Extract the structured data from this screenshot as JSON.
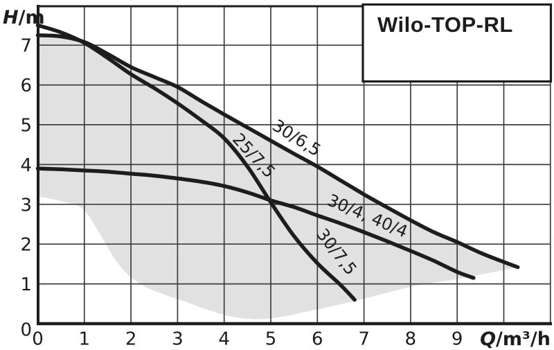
{
  "title_box": {
    "title": "Wilo-TOP-RL"
  },
  "colors": {
    "curve": "#1d1d1b",
    "grid": "#3d3d3d",
    "region_fill": "#e1e1e1",
    "background": "#ffffff",
    "border": "#1d1d1b"
  },
  "chart_data": {
    "type": "line",
    "title": "Wilo-TOP-RL",
    "xlabel": "Q/m³/h",
    "ylabel": "H/m",
    "xlabel_parts": {
      "symbol": "Q",
      "unit": "/m³/h"
    },
    "ylabel_parts": {
      "symbol": "H",
      "unit": "/m"
    },
    "xlim": [
      0,
      11
    ],
    "ylim": [
      0,
      8
    ],
    "grid": true,
    "legend_position": "none",
    "x_ticks": [
      0,
      1,
      2,
      3,
      4,
      5,
      6,
      7,
      8,
      9
    ],
    "y_ticks": [
      0,
      1,
      2,
      3,
      4,
      5,
      6,
      7
    ],
    "series": [
      {
        "name": "30/6,5",
        "points": [
          [
            0,
            7.25
          ],
          [
            0.5,
            7.22
          ],
          [
            1,
            7.08
          ],
          [
            1.5,
            6.78
          ],
          [
            2,
            6.45
          ],
          [
            2.5,
            6.2
          ],
          [
            3,
            5.95
          ],
          [
            3.5,
            5.6
          ],
          [
            4,
            5.26
          ],
          [
            4.5,
            4.93
          ],
          [
            5,
            4.6
          ],
          [
            5.5,
            4.27
          ],
          [
            6,
            3.95
          ],
          [
            6.5,
            3.6
          ],
          [
            7,
            3.25
          ],
          [
            7.5,
            2.92
          ],
          [
            8,
            2.6
          ],
          [
            8.5,
            2.3
          ],
          [
            9,
            2.05
          ],
          [
            9.5,
            1.78
          ],
          [
            10,
            1.55
          ],
          [
            10.3,
            1.42
          ]
        ]
      },
      {
        "name": "25/7,5, 30/7,5",
        "points": [
          [
            0,
            7.5
          ],
          [
            0.5,
            7.32
          ],
          [
            1,
            7.06
          ],
          [
            1.5,
            6.68
          ],
          [
            2,
            6.27
          ],
          [
            2.5,
            5.92
          ],
          [
            3,
            5.54
          ],
          [
            3.5,
            5.12
          ],
          [
            4,
            4.66
          ],
          [
            4.5,
            3.95
          ],
          [
            5,
            3.05
          ],
          [
            5.5,
            2.2
          ],
          [
            6,
            1.52
          ],
          [
            6.5,
            0.97
          ],
          [
            6.8,
            0.6
          ]
        ]
      },
      {
        "name": "30/4, 40/4",
        "points": [
          [
            0,
            3.9
          ],
          [
            0.5,
            3.88
          ],
          [
            1,
            3.85
          ],
          [
            1.5,
            3.82
          ],
          [
            2,
            3.77
          ],
          [
            2.5,
            3.72
          ],
          [
            3,
            3.65
          ],
          [
            3.5,
            3.57
          ],
          [
            4,
            3.46
          ],
          [
            4.5,
            3.3
          ],
          [
            5,
            3.1
          ],
          [
            5.5,
            2.93
          ],
          [
            6,
            2.72
          ],
          [
            6.5,
            2.52
          ],
          [
            7,
            2.3
          ],
          [
            7.5,
            2.07
          ],
          [
            8,
            1.83
          ],
          [
            8.5,
            1.58
          ],
          [
            9,
            1.3
          ],
          [
            9.35,
            1.15
          ]
        ]
      }
    ],
    "operating_range": {
      "description": "gray envelope: upper edge follows curve 30/6,5",
      "upper_series": "30/6,5",
      "lower_boundary": [
        [
          0,
          3.2
        ],
        [
          0.5,
          3.08
        ],
        [
          0.9,
          2.94
        ],
        [
          1.1,
          2.7
        ],
        [
          1.3,
          2.32
        ],
        [
          1.5,
          1.92
        ],
        [
          1.7,
          1.55
        ],
        [
          1.95,
          1.22
        ],
        [
          2.3,
          0.93
        ],
        [
          2.75,
          0.72
        ],
        [
          3.2,
          0.54
        ],
        [
          3.7,
          0.33
        ],
        [
          4.3,
          0.15
        ],
        [
          5,
          0.13
        ],
        [
          6,
          0.36
        ],
        [
          6.9,
          0.6
        ],
        [
          8.1,
          0.95
        ],
        [
          9,
          1.12
        ],
        [
          10.3,
          1.42
        ]
      ]
    },
    "curve_labels": [
      {
        "text": "30/6,5",
        "q": 5.49,
        "h": 4.55,
        "angle_deg": 32
      },
      {
        "text": "25/7,5",
        "q": 4.55,
        "h": 4.13,
        "angle_deg": 47
      },
      {
        "text": "30/4, 40/4",
        "q": 7.03,
        "h": 2.58,
        "angle_deg": 23
      },
      {
        "text": "30/7,5",
        "q": 6.32,
        "h": 1.72,
        "angle_deg": 52
      }
    ]
  }
}
